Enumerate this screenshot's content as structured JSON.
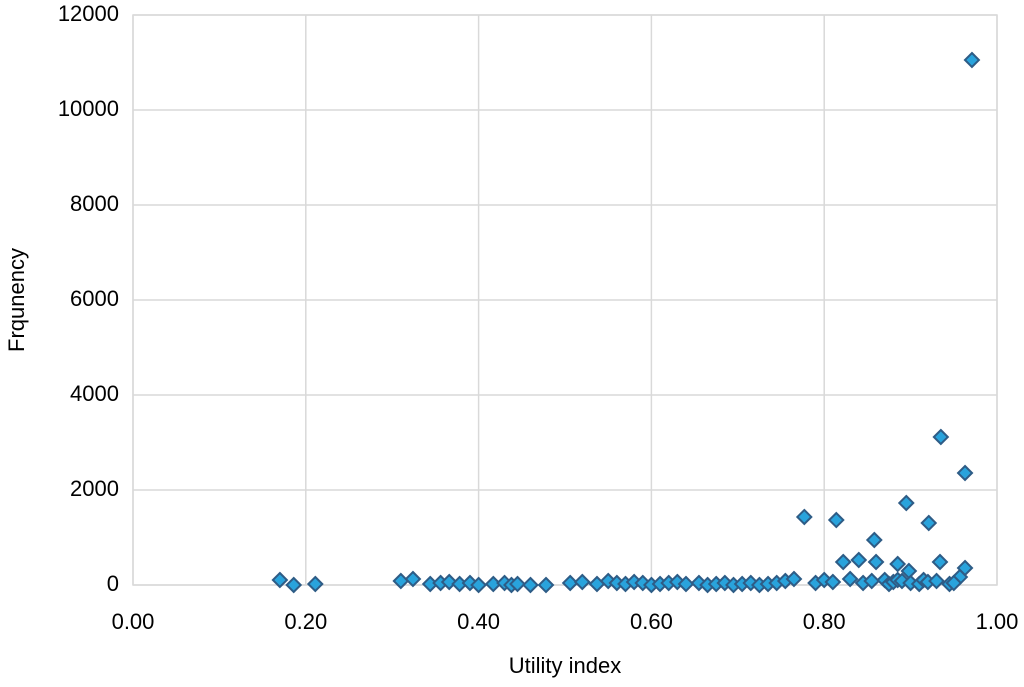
{
  "chart_data": {
    "type": "scatter",
    "x_label": "Utility index",
    "y_label": "Frqunency",
    "x": [
      0.971,
      0.935,
      0.963,
      0.895,
      0.921,
      0.777,
      0.814,
      0.858,
      0.822,
      0.84,
      0.86,
      0.885,
      0.934,
      0.963,
      0.898,
      0.957,
      0.17,
      0.186,
      0.211,
      0.31,
      0.324,
      0.344,
      0.356,
      0.366,
      0.378,
      0.39,
      0.4,
      0.417,
      0.43,
      0.438,
      0.445,
      0.46,
      0.478,
      0.506,
      0.52,
      0.537,
      0.55,
      0.56,
      0.57,
      0.58,
      0.59,
      0.6,
      0.61,
      0.62,
      0.63,
      0.64,
      0.655,
      0.665,
      0.675,
      0.685,
      0.695,
      0.705,
      0.715,
      0.725,
      0.735,
      0.745,
      0.755,
      0.765,
      0.79,
      0.8,
      0.81,
      0.83,
      0.845,
      0.855,
      0.87,
      0.875,
      0.88,
      0.885,
      0.89,
      0.9,
      0.91,
      0.915,
      0.92,
      0.93,
      0.945,
      0.95
    ],
    "values": [
      11053,
      3116,
      2358,
      1726,
      1305,
      1432,
      1368,
      947,
      484,
      526,
      484,
      442,
      484,
      358,
      295,
      168,
      105,
      0,
      21,
      84,
      126,
      21,
      42,
      63,
      21,
      42,
      0,
      21,
      42,
      0,
      21,
      0,
      0,
      42,
      63,
      21,
      84,
      42,
      21,
      63,
      42,
      0,
      21,
      42,
      63,
      21,
      42,
      0,
      21,
      42,
      0,
      21,
      42,
      0,
      21,
      42,
      84,
      126,
      42,
      105,
      63,
      126,
      42,
      84,
      105,
      21,
      63,
      105,
      84,
      42,
      21,
      105,
      63,
      84,
      21,
      42
    ],
    "color": "#29a3dc",
    "edge_color": "#2e5c86",
    "xlim": [
      0,
      1
    ],
    "xticks": [
      {
        "value": 0,
        "label": "0.00"
      },
      {
        "value": 0.2,
        "label": "0.20"
      },
      {
        "value": 0.4,
        "label": "0.40"
      },
      {
        "value": 0.6,
        "label": "0.60"
      },
      {
        "value": 0.8,
        "label": "0.80"
      },
      {
        "value": 1,
        "label": "1.00"
      }
    ],
    "ylim": [
      0,
      12000
    ],
    "yticks": [
      0,
      2000,
      4000,
      6000,
      8000,
      10000,
      12000
    ],
    "grid": true
  }
}
